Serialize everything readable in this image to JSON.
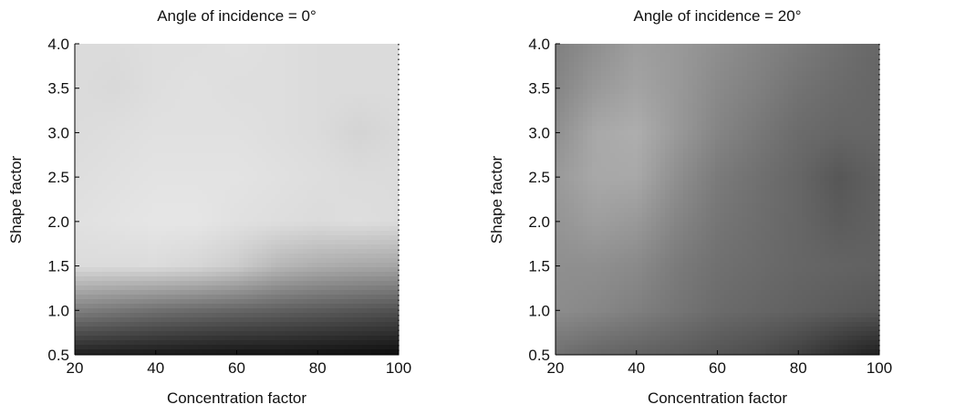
{
  "chart_data": [
    {
      "type": "heatmap",
      "title": "Angle of incidence = 0°",
      "xlabel": "Concentration factor",
      "ylabel": "Shape factor",
      "xlim": [
        20,
        100
      ],
      "ylim": [
        0.5,
        4.0
      ],
      "x_ticks": [
        "20",
        "40",
        "60",
        "80",
        "100"
      ],
      "y_ticks": [
        "0.5",
        "1.0",
        "1.5",
        "2.0",
        "2.5",
        "3.0",
        "3.5",
        "4.0"
      ],
      "colormap": "gray",
      "x": [
        20,
        30,
        40,
        50,
        60,
        70,
        80,
        90,
        100
      ],
      "y": [
        0.5,
        1.0,
        1.5,
        2.0,
        2.5,
        3.0,
        3.5,
        4.0
      ],
      "z_gray": [
        [
          0.12,
          0.11,
          0.1,
          0.09,
          0.08,
          0.08,
          0.07,
          0.06,
          0.05
        ],
        [
          0.5,
          0.47,
          0.44,
          0.42,
          0.4,
          0.38,
          0.36,
          0.34,
          0.32
        ],
        [
          0.86,
          0.86,
          0.86,
          0.84,
          0.8,
          0.72,
          0.68,
          0.66,
          0.65
        ],
        [
          0.88,
          0.89,
          0.9,
          0.9,
          0.88,
          0.87,
          0.86,
          0.87,
          0.86
        ],
        [
          0.87,
          0.88,
          0.89,
          0.89,
          0.89,
          0.88,
          0.87,
          0.86,
          0.86
        ],
        [
          0.86,
          0.87,
          0.88,
          0.88,
          0.88,
          0.87,
          0.86,
          0.83,
          0.85
        ],
        [
          0.86,
          0.85,
          0.87,
          0.88,
          0.87,
          0.87,
          0.86,
          0.86,
          0.86
        ],
        [
          0.86,
          0.86,
          0.87,
          0.87,
          0.88,
          0.87,
          0.86,
          0.86,
          0.86
        ]
      ]
    },
    {
      "type": "heatmap",
      "title": "Angle of incidence = 20°",
      "xlabel": "Concentration factor",
      "ylabel": "Shape factor",
      "xlim": [
        20,
        100
      ],
      "ylim": [
        0.5,
        4.0
      ],
      "x_ticks": [
        "20",
        "40",
        "60",
        "80",
        "100"
      ],
      "y_ticks": [
        "0.5",
        "1.0",
        "1.5",
        "2.0",
        "2.5",
        "3.0",
        "3.5",
        "4.0"
      ],
      "colormap": "gray",
      "x": [
        20,
        30,
        40,
        50,
        60,
        70,
        80,
        90,
        100
      ],
      "y": [
        0.5,
        1.0,
        1.5,
        2.0,
        2.5,
        3.0,
        3.5,
        4.0
      ],
      "z_gray": [
        [
          0.44,
          0.4,
          0.38,
          0.36,
          0.33,
          0.3,
          0.25,
          0.18,
          0.12
        ],
        [
          0.55,
          0.53,
          0.5,
          0.46,
          0.42,
          0.4,
          0.38,
          0.36,
          0.34
        ],
        [
          0.56,
          0.56,
          0.54,
          0.48,
          0.44,
          0.42,
          0.4,
          0.39,
          0.38
        ],
        [
          0.58,
          0.62,
          0.6,
          0.52,
          0.46,
          0.43,
          0.4,
          0.36,
          0.38
        ],
        [
          0.6,
          0.66,
          0.66,
          0.56,
          0.48,
          0.44,
          0.4,
          0.34,
          0.38
        ],
        [
          0.56,
          0.66,
          0.68,
          0.6,
          0.52,
          0.47,
          0.42,
          0.4,
          0.4
        ],
        [
          0.52,
          0.6,
          0.64,
          0.6,
          0.54,
          0.5,
          0.45,
          0.42,
          0.4
        ],
        [
          0.5,
          0.56,
          0.62,
          0.6,
          0.56,
          0.52,
          0.48,
          0.44,
          0.4
        ]
      ]
    }
  ]
}
